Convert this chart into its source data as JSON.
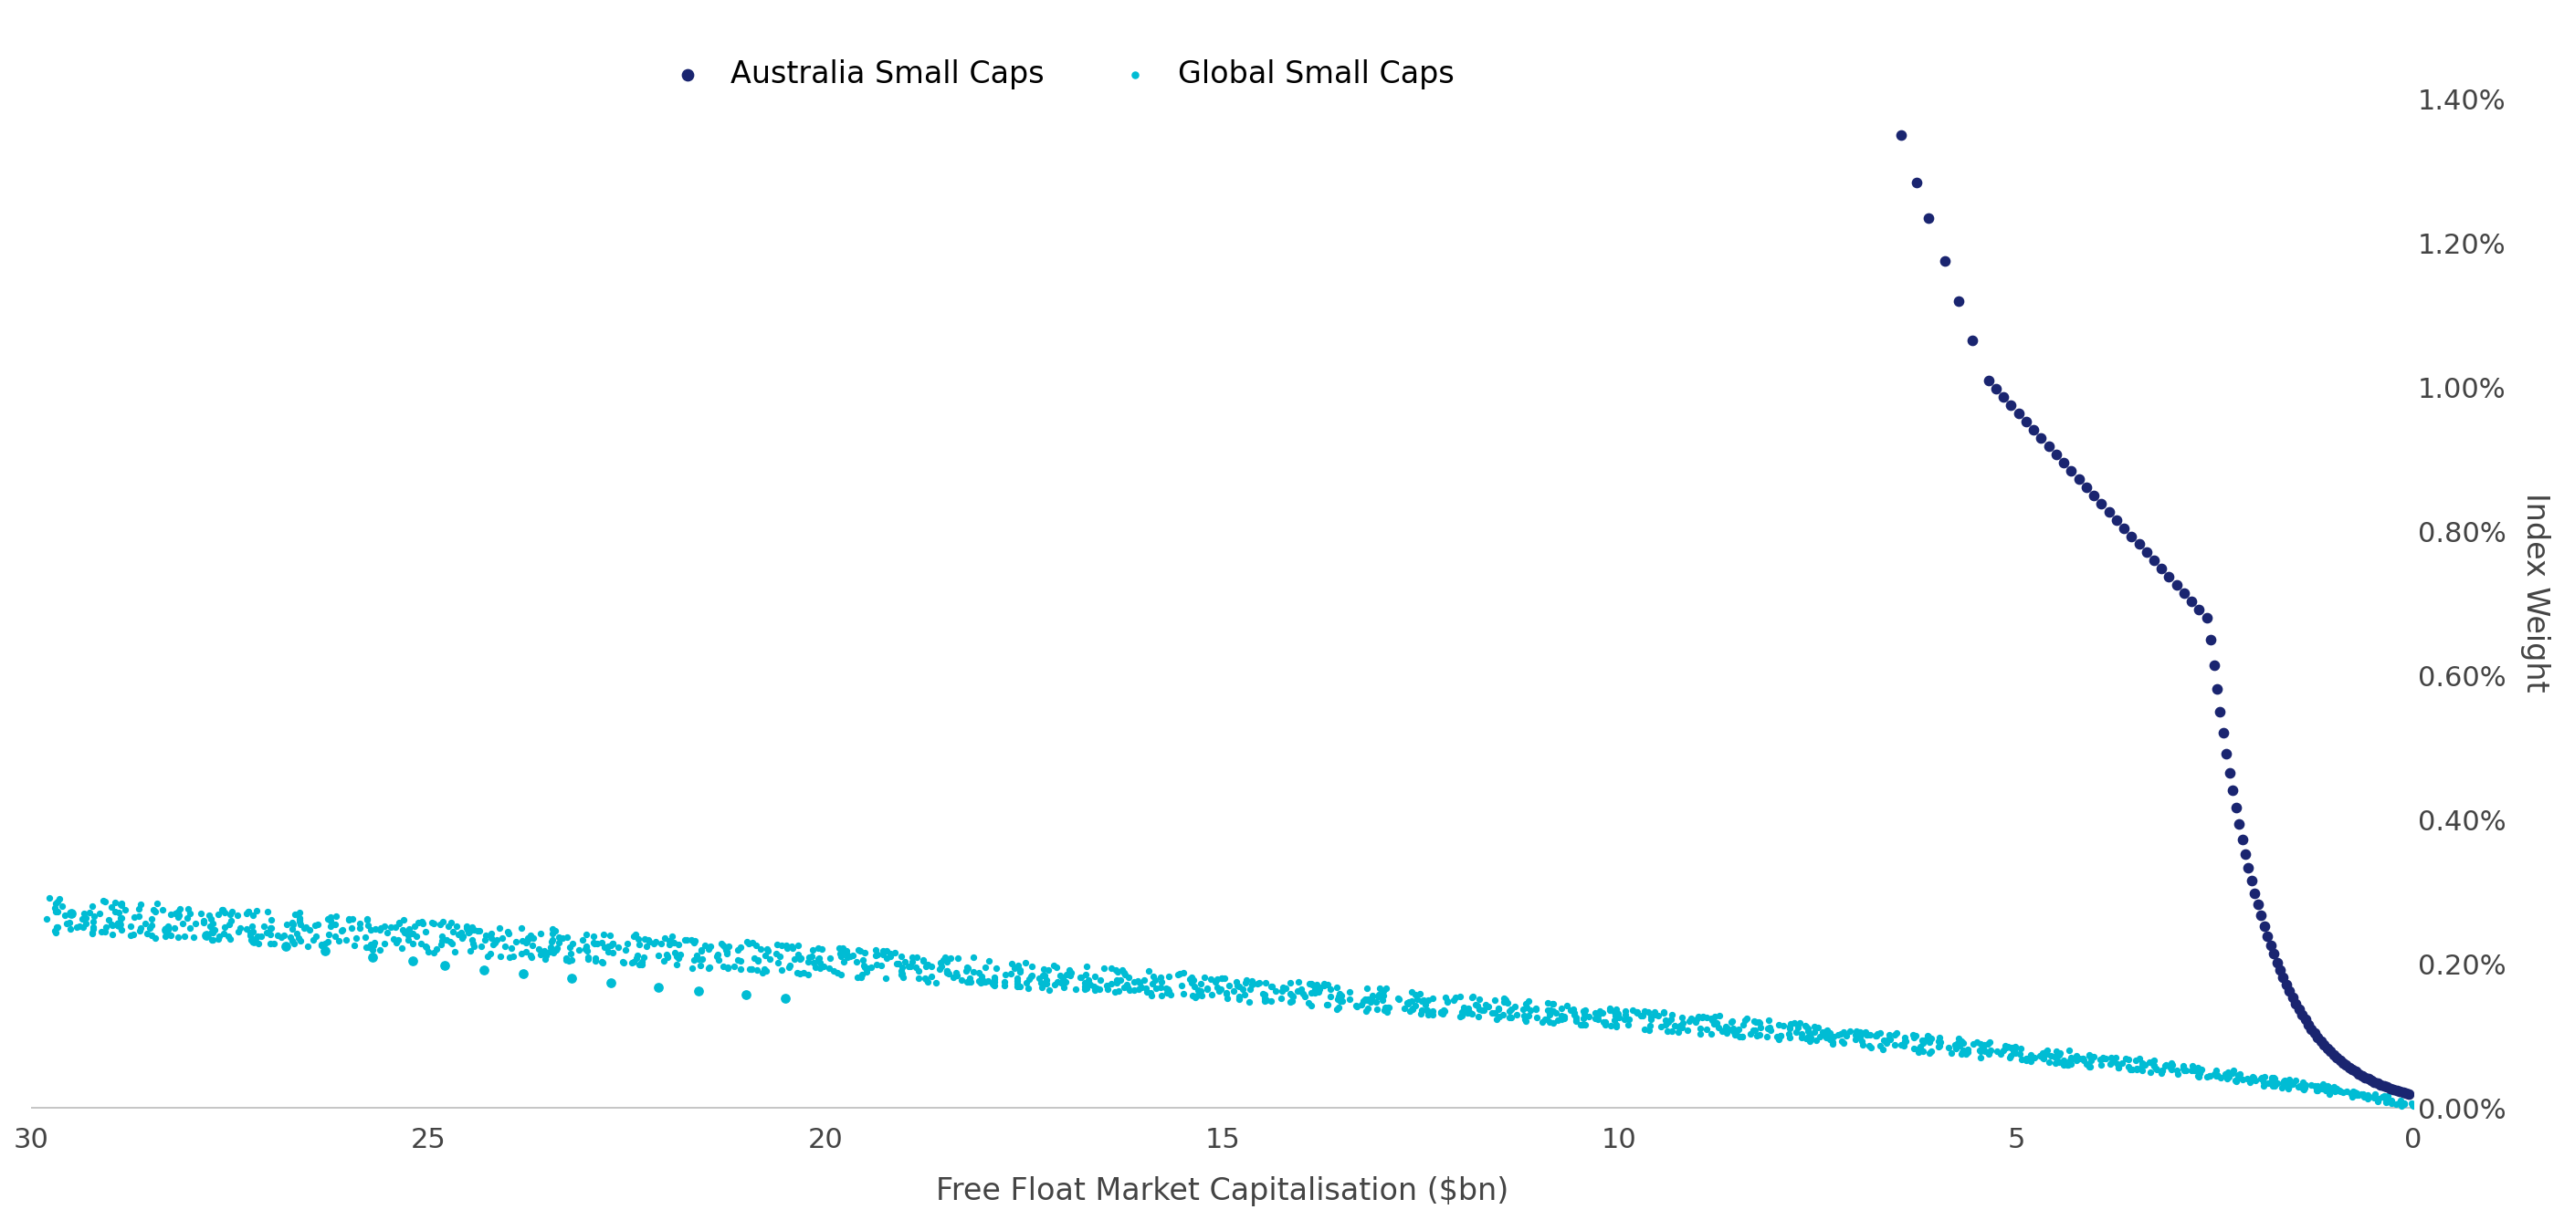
{
  "aus_color": "#1a2570",
  "global_color": "#00bcd4",
  "xlabel": "Free Float Market Capitalisation ($bn)",
  "ylabel": "Index Weight",
  "legend_labels": [
    "Australia Small Caps",
    "Global Small Caps"
  ],
  "xlim": [
    30,
    0
  ],
  "ylim": [
    -0.0002,
    0.0145
  ],
  "yticks": [
    0.0,
    0.002,
    0.004,
    0.006,
    0.008,
    0.01,
    0.012,
    0.014
  ],
  "ytick_labels": [
    "0.00%",
    "0.20%",
    "0.40%",
    "0.60%",
    "0.80%",
    "1.00%",
    "1.20%",
    "1.40%"
  ],
  "xticks": [
    30,
    25,
    20,
    15,
    10,
    5,
    0
  ],
  "background_color": "#ffffff",
  "marker_size_aus": 55,
  "marker_size_global": 18,
  "axis_label_fontsize": 24,
  "tick_fontsize": 22,
  "legend_fontsize": 24
}
